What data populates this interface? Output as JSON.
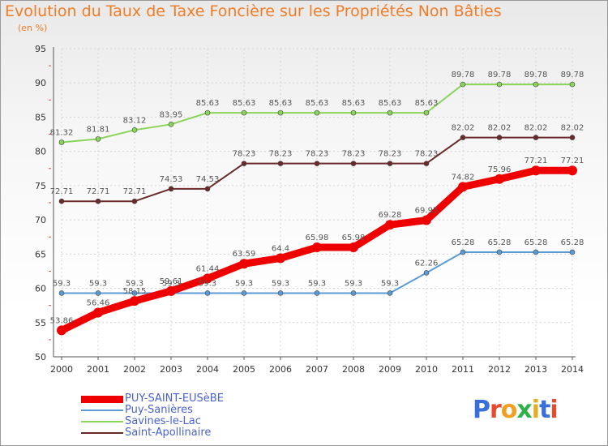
{
  "title": "Evolution du Taux de Taxe Foncière sur les Propriétés Non Bâties",
  "subtitle": "(en %)",
  "logo": {
    "text": "Proxiti",
    "colors": [
      "#3a6fd8",
      "#e84a2f",
      "#f0a020",
      "#2fb04a",
      "#e0b020",
      "#3a6fd8",
      "#e84a2f"
    ]
  },
  "chart_data": {
    "type": "line",
    "x": [
      "2000",
      "2001",
      "2002",
      "2003",
      "2004",
      "2005",
      "2006",
      "2007",
      "2008",
      "2009",
      "2010",
      "2011",
      "2012",
      "2013",
      "2014"
    ],
    "ylim": [
      50,
      95
    ],
    "yticks": [
      "50",
      "55",
      "60",
      "65",
      "70",
      "75",
      "80",
      "85",
      "90",
      "95"
    ],
    "grid": true,
    "series": [
      {
        "name": "Savines-le-Lac",
        "color": "#8ad45a",
        "width": 2,
        "values": [
          81.32,
          81.81,
          83.12,
          83.95,
          85.63,
          85.63,
          85.63,
          85.63,
          85.63,
          85.63,
          85.63,
          89.78,
          89.78,
          89.78,
          89.78
        ],
        "labels": [
          "81.32",
          "81.81",
          "83.12",
          "83.95",
          "85.63",
          "85.63",
          "85.63",
          "85.63",
          "85.63",
          "85.63",
          "85.63",
          "89.78",
          "89.78",
          "89.78",
          "89.78"
        ]
      },
      {
        "name": "Saint-Apollinaire",
        "color": "#6b2a2a",
        "width": 2,
        "values": [
          72.71,
          72.71,
          72.71,
          74.53,
          74.53,
          78.23,
          78.23,
          78.23,
          78.23,
          78.23,
          78.23,
          82.02,
          82.02,
          82.02,
          82.02
        ],
        "labels": [
          "72.71",
          "72.71",
          "72.71",
          "74.53",
          "74.53",
          "78.23",
          "78.23",
          "78.23",
          "78.23",
          "78.23",
          "78.23",
          "82.02",
          "82.02",
          "82.02",
          "82.02"
        ]
      },
      {
        "name": "Puy-Sanières",
        "color": "#5b9bd5",
        "width": 2,
        "values": [
          59.3,
          59.3,
          59.3,
          59.3,
          59.3,
          59.3,
          59.3,
          59.3,
          59.3,
          59.3,
          62.26,
          65.28,
          65.28,
          65.28,
          65.28
        ],
        "labels": [
          "59.3",
          "59.3",
          "59.3",
          "59.3",
          "59.3",
          "59.3",
          "59.3",
          "59.3",
          "59.3",
          "59.3",
          "62.26",
          "65.28",
          "65.28",
          "65.28",
          "65.28"
        ]
      },
      {
        "name": "PUY-SAINT-EUSèBE",
        "color": "#ee0000",
        "width": 9,
        "values": [
          53.86,
          56.46,
          58.15,
          59.61,
          61.44,
          63.59,
          64.4,
          65.98,
          65.98,
          69.28,
          69.95,
          74.82,
          75.96,
          77.21,
          77.21
        ],
        "labels": [
          "53.86",
          "56.46",
          "58.15",
          "59.61",
          "61.44",
          "63.59",
          "64.4",
          "65.98",
          "65.98",
          "69.28",
          "69.95",
          "74.82",
          "75.96",
          "77.21",
          "77.21"
        ]
      }
    ],
    "legend": [
      {
        "label": "PUY-SAINT-EUSèBE",
        "color": "#ee0000",
        "thick": true
      },
      {
        "label": "Puy-Sanières",
        "color": "#5b9bd5",
        "thick": false
      },
      {
        "label": "Savines-le-Lac",
        "color": "#8ad45a",
        "thick": false
      },
      {
        "label": "Saint-Apollinaire",
        "color": "#6b2a2a",
        "thick": false
      }
    ],
    "legend_position": "bottom-left"
  }
}
